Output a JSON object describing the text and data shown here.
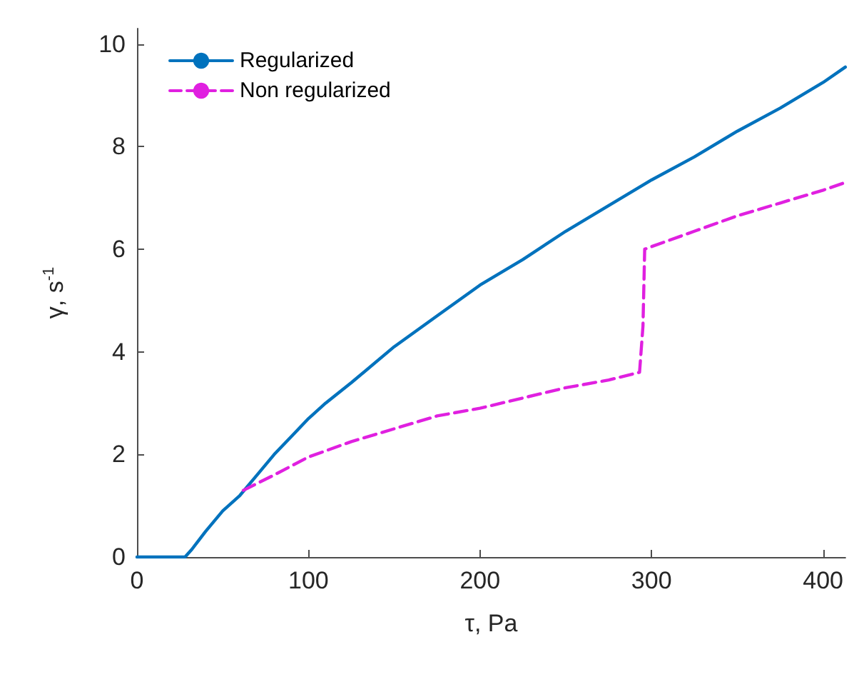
{
  "chart_data": {
    "type": "line",
    "xlabel": "τ, Pa",
    "ylabel": "γ, s$^{-1}$",
    "xlim": [
      0,
      413
    ],
    "xticks": [
      0,
      100,
      200,
      300,
      400
    ],
    "ylim": [
      0,
      10.3
    ],
    "yticks": [
      0,
      2,
      4,
      6,
      8,
      10
    ],
    "grid": false,
    "legend": "top left",
    "marker": "none",
    "series": [
      {
        "name": "Regularized",
        "color": "#0072bd",
        "line_style": "solid",
        "x": [
          0,
          28,
          32,
          40,
          50,
          60,
          70,
          80,
          90,
          100,
          110,
          125,
          150,
          175,
          200,
          225,
          250,
          275,
          300,
          325,
          350,
          375,
          400,
          413
        ],
        "values": [
          0,
          0,
          0.15,
          0.5,
          0.9,
          1.2,
          1.6,
          2.0,
          2.35,
          2.7,
          3.0,
          3.4,
          4.1,
          4.7,
          5.3,
          5.8,
          6.35,
          6.85,
          7.35,
          7.8,
          8.3,
          8.75,
          9.25,
          9.55
        ]
      },
      {
        "name": "Non regularized",
        "color": "#e020e0",
        "line_style": "dashed",
        "x": [
          62,
          80,
          100,
          125,
          150,
          175,
          200,
          225,
          250,
          275,
          293,
          295,
          296,
          300,
          325,
          350,
          375,
          400,
          413
        ],
        "values": [
          1.3,
          1.6,
          1.95,
          2.25,
          2.5,
          2.75,
          2.9,
          3.1,
          3.3,
          3.45,
          3.6,
          4.5,
          6.0,
          6.05,
          6.35,
          6.65,
          6.9,
          7.15,
          7.3
        ]
      }
    ]
  }
}
